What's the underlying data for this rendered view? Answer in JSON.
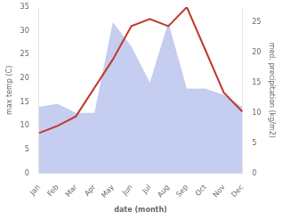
{
  "chart_data": {
    "type": "line",
    "xlabel": "date (month)",
    "ylabel": "max temp (C)",
    "y2label": "med. precipitation (kg/m2)",
    "categories": [
      "Jan",
      "Feb",
      "Mar",
      "Apr",
      "May",
      "Jun",
      "Jul",
      "Aug",
      "Sep",
      "Oct",
      "Nov",
      "Dec"
    ],
    "series": [
      {
        "type": "area",
        "axis": "y2",
        "color": "#c5cdf0",
        "values": [
          11.0,
          11.5,
          10.0,
          10.0,
          25.0,
          21.0,
          15.0,
          25.0,
          14.0,
          14.0,
          13.0,
          11.0
        ]
      },
      {
        "type": "line",
        "color": "#c0392b",
        "values": [
          8.5,
          10.0,
          12.0,
          18.0,
          24.0,
          31.0,
          32.5,
          31.0,
          35.0,
          26.0,
          17.0,
          13.0
        ]
      }
    ],
    "ylim": [
      0,
      35
    ],
    "yticks": [
      0,
      5,
      10,
      15,
      20,
      25,
      30,
      35
    ],
    "y2lim": [
      0,
      27.5
    ],
    "y2ticks": [
      0,
      5,
      10,
      15,
      20,
      25
    ],
    "grid": false
  }
}
